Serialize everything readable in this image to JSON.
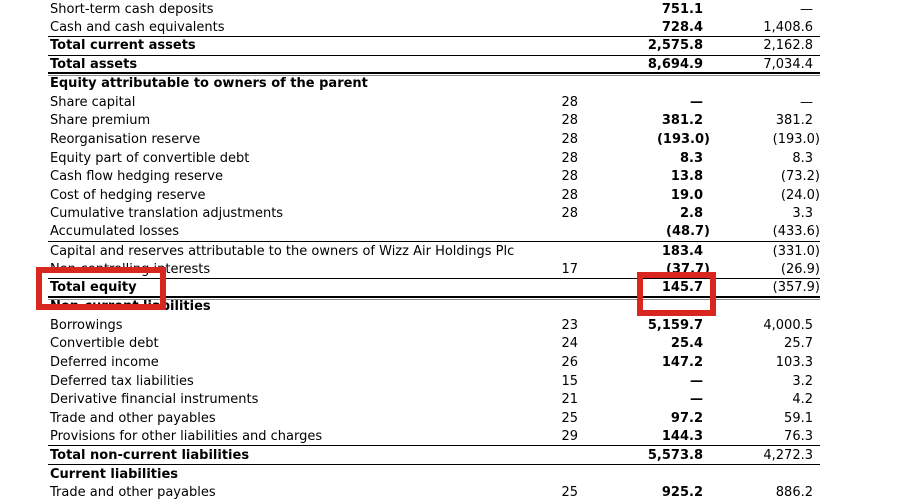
{
  "table": {
    "rows": [
      {
        "label": "Short-term cash deposits",
        "note": "",
        "v2021": "751.1",
        "v2020": "—",
        "kind": "item",
        "rule_below": "none"
      },
      {
        "label": "Cash and cash equivalents",
        "note": "",
        "v2021": "728.4",
        "v2020": "1,408.6",
        "kind": "item",
        "rule_below": "single"
      },
      {
        "label": "Total current assets",
        "note": "",
        "v2021": "2,575.8",
        "v2020": "2,162.8",
        "kind": "total",
        "rule_below": "single"
      },
      {
        "label": "Total assets",
        "note": "",
        "v2021": "8,694.9",
        "v2020": "7,034.4",
        "kind": "total",
        "rule_below": "double"
      },
      {
        "label": "Equity attributable to owners of the parent",
        "note": "",
        "v2021": "",
        "v2020": "",
        "kind": "section",
        "rule_below": "none"
      },
      {
        "label": "Share capital",
        "note": "28",
        "v2021": "—",
        "v2020": "—",
        "kind": "item",
        "rule_below": "none"
      },
      {
        "label": "Share premium",
        "note": "28",
        "v2021": "381.2",
        "v2020": "381.2",
        "kind": "item",
        "rule_below": "none"
      },
      {
        "label": "Reorganisation reserve",
        "note": "28",
        "v2021": "(193.0)",
        "v2020": "(193.0)",
        "kind": "item",
        "rule_below": "none"
      },
      {
        "label": "Equity part of convertible debt",
        "note": "28",
        "v2021": "8.3",
        "v2020": "8.3",
        "kind": "item",
        "rule_below": "none"
      },
      {
        "label": "Cash flow hedging reserve",
        "note": "28",
        "v2021": "13.8",
        "v2020": "(73.2)",
        "kind": "item",
        "rule_below": "none"
      },
      {
        "label": "Cost of hedging reserve",
        "note": "28",
        "v2021": "19.0",
        "v2020": "(24.0)",
        "kind": "item",
        "rule_below": "none"
      },
      {
        "label": "Cumulative translation adjustments",
        "note": "28",
        "v2021": "2.8",
        "v2020": "3.3",
        "kind": "item",
        "rule_below": "none"
      },
      {
        "label": "Accumulated losses",
        "note": "",
        "v2021": "(48.7)",
        "v2020": "(433.6)",
        "kind": "item",
        "rule_below": "single"
      },
      {
        "label": "Capital and reserves attributable to the owners of Wizz Air Holdings Plc",
        "note": "",
        "v2021": "183.4",
        "v2020": "(331.0)",
        "kind": "item",
        "rule_below": "none"
      },
      {
        "label": "Non-controlling interests",
        "note": "17",
        "v2021": "(37.7)",
        "v2020": "(26.9)",
        "kind": "item",
        "rule_below": "single"
      },
      {
        "label": "Total equity",
        "note": "",
        "v2021": "145.7",
        "v2020": "(357.9)",
        "kind": "total",
        "rule_below": "double"
      },
      {
        "label": "Non-current liabilities",
        "note": "",
        "v2021": "",
        "v2020": "",
        "kind": "section",
        "rule_below": "none"
      },
      {
        "label": "Borrowings",
        "note": "23",
        "v2021": "5,159.7",
        "v2020": "4,000.5",
        "kind": "item",
        "rule_below": "none"
      },
      {
        "label": "Convertible debt",
        "note": "24",
        "v2021": "25.4",
        "v2020": "25.7",
        "kind": "item",
        "rule_below": "none"
      },
      {
        "label": "Deferred income",
        "note": "26",
        "v2021": "147.2",
        "v2020": "103.3",
        "kind": "item",
        "rule_below": "none"
      },
      {
        "label": "Deferred tax liabilities",
        "note": "15",
        "v2021": "—",
        "v2020": "3.2",
        "kind": "item",
        "rule_below": "none"
      },
      {
        "label": "Derivative financial instruments",
        "note": "21",
        "v2021": "—",
        "v2020": "4.2",
        "kind": "item",
        "rule_below": "none"
      },
      {
        "label": "Trade and other payables",
        "note": "25",
        "v2021": "97.2",
        "v2020": "59.1",
        "kind": "item",
        "rule_below": "none"
      },
      {
        "label": "Provisions for other liabilities and charges",
        "note": "29",
        "v2021": "144.3",
        "v2020": "76.3",
        "kind": "item",
        "rule_below": "single"
      },
      {
        "label": "Total non-current liabilities",
        "note": "",
        "v2021": "5,573.8",
        "v2020": "4,272.3",
        "kind": "total",
        "rule_below": "single"
      },
      {
        "label": "Current liabilities",
        "note": "",
        "v2021": "",
        "v2020": "",
        "kind": "section",
        "rule_below": "none"
      },
      {
        "label": "Trade and other payables",
        "note": "25",
        "v2021": "925.2",
        "v2020": "886.2",
        "kind": "item",
        "rule_below": "none"
      }
    ]
  },
  "annotations": {
    "highlight_color": "#d9261f",
    "boxes": [
      {
        "name": "total-equity-label-highlight",
        "target": "Total equity"
      },
      {
        "name": "total-equity-value-highlight",
        "target": "145.7"
      }
    ]
  }
}
